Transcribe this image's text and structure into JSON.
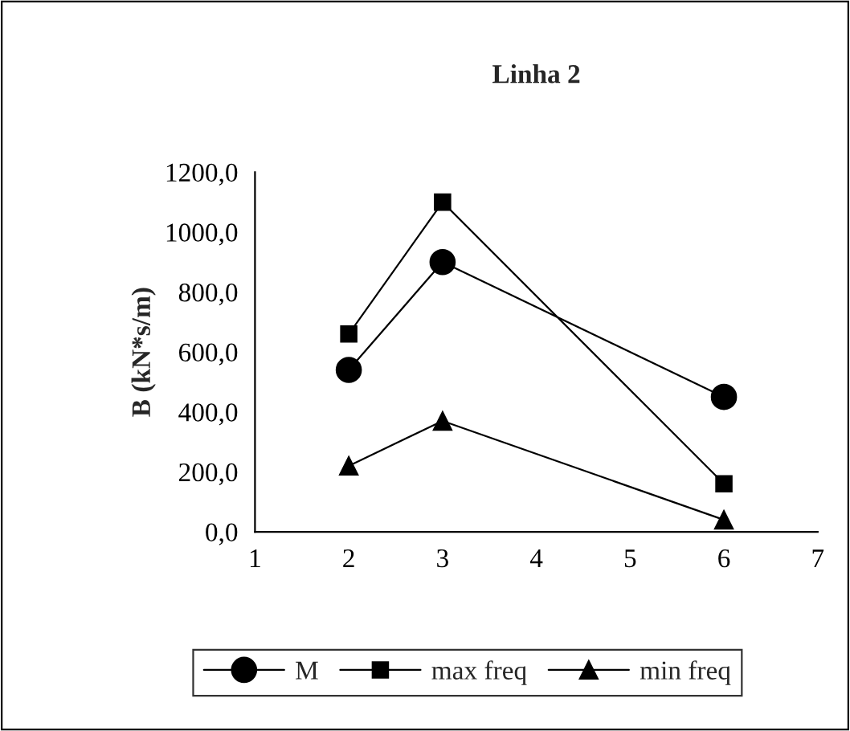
{
  "chart_data": {
    "type": "line",
    "title": "Linha 2",
    "ylabel": "B (kN*s/m)",
    "x": [
      2,
      3,
      6
    ],
    "series": [
      {
        "name": "M",
        "color": "#000000",
        "marker": "circle",
        "values": [
          540,
          900,
          450
        ]
      },
      {
        "name": "max freq",
        "color": "#000000",
        "marker": "square",
        "values": [
          660,
          1100,
          160
        ]
      },
      {
        "name": "min freq",
        "color": "#000000",
        "marker": "triangle",
        "values": [
          220,
          370,
          40
        ]
      }
    ],
    "xlim": [
      1,
      7
    ],
    "xticks": [
      1,
      2,
      3,
      4,
      5,
      6,
      7
    ],
    "ylim": [
      0,
      1200
    ],
    "yticks": [
      {
        "value": 0,
        "label": "0,0"
      },
      {
        "value": 200,
        "label": "200,0"
      },
      {
        "value": 400,
        "label": "400,0"
      },
      {
        "value": 600,
        "label": "600,0"
      },
      {
        "value": 800,
        "label": "800,0"
      },
      {
        "value": 1000,
        "label": "1000,0"
      },
      {
        "value": 1200,
        "label": "1200,0"
      }
    ],
    "grid": false,
    "legend": "bottom",
    "line_style": "solid"
  }
}
